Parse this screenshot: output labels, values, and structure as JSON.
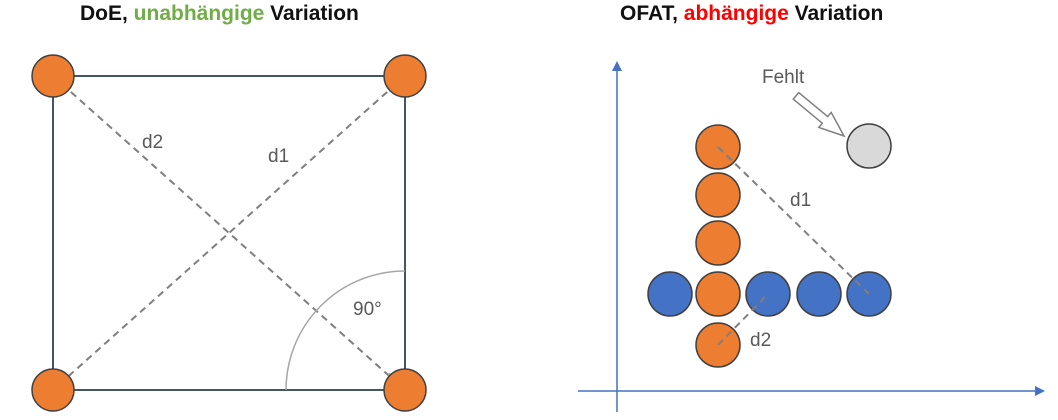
{
  "left_panel": {
    "title_prefix": "DoE, ",
    "title_highlight": "unabhängige",
    "title_suffix": " Variation",
    "diagonal_labels": [
      "d2",
      "d1"
    ],
    "angle_label": "90°"
  },
  "right_panel": {
    "title_prefix": "OFAT, ",
    "title_highlight": "abhängige",
    "title_suffix": " Variation",
    "missing_label": "Fehlt",
    "dist_labels": [
      "d1",
      "d2"
    ]
  },
  "colors": {
    "orange": "#ED7D31",
    "blue": "#4472C4",
    "gray_point": "#D9D9D9",
    "green_highlight": "#70AD47",
    "red_highlight": "#FF0000",
    "square_line": "#44546A",
    "axis": "#4472C4"
  }
}
